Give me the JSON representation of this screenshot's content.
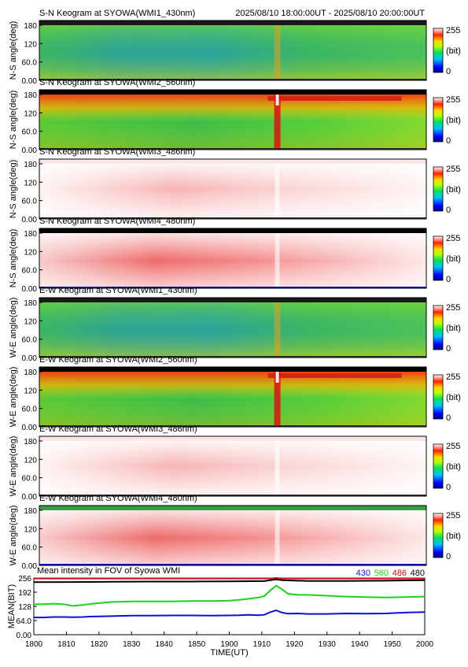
{
  "header": {
    "time_range": "2025/08/10 18:00:00UT - 2025/08/10 20:00:00UT"
  },
  "colors": {
    "430": "#1010d0",
    "560": "#20d020",
    "486": "#d01010",
    "480": "#000000"
  },
  "panels": [
    {
      "title": "S-N Keogram at SYOWA(WMI1_430nm)",
      "ylabel": "N-S angle(deg)",
      "style": "green",
      "top_band": "#1a1a1a"
    },
    {
      "title": "S-N Keogram at SYOWA(WMI2_560nm)",
      "ylabel": "N-S angle(deg)",
      "style": "green_red",
      "top_band": "#000000"
    },
    {
      "title": "S-N Keogram at SYOWA(WMI3_486nm)",
      "ylabel": "N-S angle(deg)",
      "style": "pale",
      "top_band": "#fbe6e6"
    },
    {
      "title": "S-N Keogram at SYOWA(WMI4_480nm)",
      "ylabel": "N-S angle(deg)",
      "style": "pink",
      "top_band": "#000000"
    },
    {
      "title": "E-W Keogram at SYOWA(WMI1_430nm)",
      "ylabel": "W-E angle(deg)",
      "style": "green",
      "top_band": "#1a1a1a"
    },
    {
      "title": "E-W Keogram at SYOWA(WMI2_560nm)",
      "ylabel": "W-E angle(deg)",
      "style": "green_red",
      "top_band": "#000000"
    },
    {
      "title": "E-W Keogram at SYOWA(WMI3_486nm)",
      "ylabel": "W-E angle(deg)",
      "style": "pale",
      "top_band": "#fbe6e6"
    },
    {
      "title": "E-W Keogram at SYOWA(WMI4_480nm)",
      "ylabel": "W-E angle(deg)",
      "style": "pink",
      "top_band": "#30a040"
    }
  ],
  "keogram_yticks": [
    "180",
    "120",
    "60.0",
    "0.00"
  ],
  "colorbar": {
    "top": "255",
    "mid": "(bit)",
    "bottom": "0"
  },
  "chart_data": {
    "type": "line",
    "title": "Mean intensity in FOV of Syowa WMI",
    "xlabel": "TIME(UT)",
    "ylabel": "MEAN(BIT)",
    "xlim": [
      1800,
      2000
    ],
    "ylim": [
      0,
      256
    ],
    "xticks": [
      "1800",
      "1810",
      "1820",
      "1830",
      "1840",
      "1850",
      "1900",
      "1910",
      "1920",
      "1930",
      "1940",
      "1950",
      "2000"
    ],
    "yticks": [
      "256",
      "192",
      "128",
      "64.0",
      "0.00"
    ],
    "series": [
      {
        "name": "430",
        "color": "#1010d0",
        "x": [
          0,
          5,
          10,
          15,
          20,
          25,
          30,
          40,
          50,
          60,
          70,
          80,
          90,
          100,
          105,
          110,
          115,
          118,
          121,
          124,
          127,
          130,
          135,
          140,
          150,
          160,
          170,
          180,
          190,
          200
        ],
        "y": [
          78,
          78,
          80,
          80,
          79,
          80,
          82,
          84,
          86,
          86,
          87,
          87,
          86,
          87,
          88,
          90,
          88,
          90,
          102,
          110,
          100,
          95,
          96,
          94,
          94,
          96,
          95,
          96,
          100,
          102
        ]
      },
      {
        "name": "560",
        "color": "#20d020",
        "x": [
          0,
          5,
          10,
          15,
          20,
          25,
          30,
          40,
          50,
          60,
          70,
          80,
          90,
          100,
          105,
          110,
          115,
          118,
          121,
          124,
          127,
          130,
          135,
          140,
          150,
          160,
          170,
          180,
          190,
          200
        ],
        "y": [
          138,
          138,
          140,
          138,
          130,
          134,
          140,
          148,
          150,
          150,
          150,
          152,
          152,
          154,
          157,
          162,
          168,
          175,
          200,
          222,
          205,
          185,
          180,
          180,
          176,
          172,
          170,
          168,
          170,
          172
        ]
      },
      {
        "name": "486",
        "color": "#d01010",
        "x": [
          0,
          20,
          40,
          60,
          80,
          100,
          121,
          124,
          127,
          140,
          160,
          180,
          200
        ],
        "y": [
          254,
          254,
          254,
          254,
          254,
          254,
          254,
          256,
          254,
          254,
          254,
          254,
          254
        ]
      },
      {
        "name": "480",
        "color": "#000000",
        "x": [
          0,
          20,
          40,
          60,
          80,
          100,
          118,
          121,
          124,
          127,
          140,
          160,
          180,
          200
        ],
        "y": [
          237,
          238,
          239,
          240,
          240,
          241,
          242,
          246,
          250,
          246,
          243,
          243,
          244,
          246
        ]
      }
    ]
  }
}
